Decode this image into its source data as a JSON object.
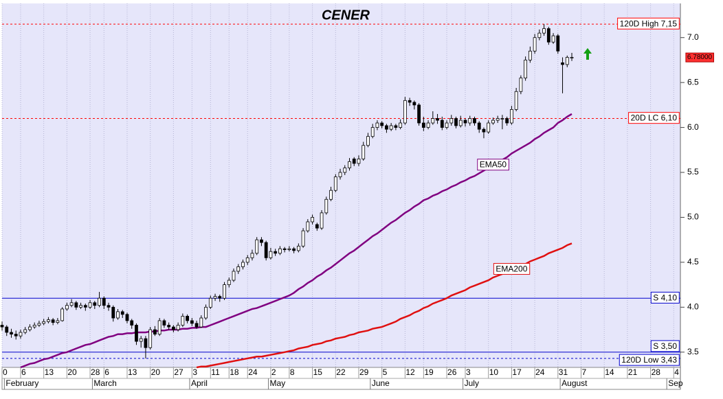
{
  "chart_data": {
    "type": "candlestick",
    "title": "CENER",
    "title_color": "#0a8a0a",
    "ylim": [
      3.33,
      7.38
    ],
    "yticks": [
      3.5,
      {
        "value": 4,
        "label": "4.0"
      },
      4.5,
      {
        "value": 5,
        "label": "5.0"
      },
      5.5,
      {
        "value": 6,
        "label": "6.0"
      },
      6.5,
      {
        "value": 7,
        "label": "7.0"
      }
    ],
    "grid": true,
    "categories": [
      "0",
      null,
      null,
      null,
      "6",
      null,
      null,
      null,
      null,
      "13",
      null,
      null,
      null,
      null,
      "20",
      null,
      null,
      null,
      null,
      "28",
      null,
      null,
      "6",
      null,
      null,
      null,
      null,
      "13",
      null,
      null,
      null,
      null,
      "20",
      null,
      null,
      null,
      null,
      "27",
      null,
      null,
      null,
      "3",
      null,
      null,
      null,
      "11",
      null,
      null,
      null,
      "18",
      null,
      null,
      null,
      "24",
      null,
      null,
      null,
      null,
      "2",
      null,
      null,
      null,
      "8",
      null,
      null,
      null,
      null,
      "15",
      null,
      null,
      null,
      null,
      "22",
      null,
      null,
      null,
      null,
      "29",
      null,
      null,
      null,
      null,
      "5",
      null,
      null,
      null,
      null,
      "12",
      null,
      null,
      null,
      "19",
      null,
      null,
      null,
      null,
      "26",
      null,
      null,
      null,
      "3",
      null,
      null,
      null,
      null,
      "10",
      null,
      null,
      null,
      null,
      "17",
      null,
      null,
      null,
      null,
      "24",
      null,
      null,
      null,
      null,
      "31",
      null,
      null,
      null,
      null,
      "7",
      null,
      null,
      null,
      null,
      "14",
      null,
      null,
      null,
      null,
      "21",
      null,
      null,
      null,
      null,
      "28",
      null,
      null,
      null,
      null,
      "4",
      null
    ],
    "months": [
      null,
      "February",
      null,
      null,
      null,
      null,
      null,
      null,
      null,
      null,
      null,
      null,
      null,
      null,
      null,
      null,
      null,
      null,
      null,
      null,
      "March",
      null,
      null,
      null,
      null,
      null,
      null,
      null,
      null,
      null,
      null,
      null,
      null,
      null,
      null,
      null,
      null,
      null,
      null,
      null,
      null,
      "April",
      null,
      null,
      null,
      null,
      null,
      null,
      null,
      null,
      null,
      null,
      null,
      null,
      null,
      null,
      null,
      null,
      "May",
      null,
      null,
      null,
      null,
      null,
      null,
      null,
      null,
      null,
      null,
      null,
      null,
      null,
      null,
      null,
      null,
      null,
      null,
      null,
      null,
      null,
      "June",
      null,
      null,
      null,
      null,
      null,
      null,
      null,
      null,
      null,
      null,
      null,
      null,
      null,
      null,
      null,
      null,
      null,
      null,
      null,
      "July",
      null,
      null,
      null,
      null,
      null,
      null,
      null,
      null,
      null,
      null,
      null,
      null,
      null,
      null,
      null,
      null,
      null,
      null,
      null,
      null,
      "August",
      null,
      null,
      null,
      null,
      null,
      null,
      null,
      null,
      null,
      null,
      null,
      null,
      null,
      null,
      null,
      null,
      null,
      null,
      null,
      null,
      null,
      null,
      "Sep",
      null,
      null
    ],
    "ohlc": [
      [
        3.8,
        3.84,
        3.74,
        3.78
      ],
      [
        3.78,
        3.8,
        3.68,
        3.72
      ],
      [
        3.72,
        3.76,
        3.66,
        3.7
      ],
      [
        3.7,
        3.74,
        3.64,
        3.68
      ],
      [
        3.68,
        3.75,
        3.65,
        3.72
      ],
      [
        3.72,
        3.78,
        3.7,
        3.75
      ],
      [
        3.75,
        3.81,
        3.73,
        3.78
      ],
      [
        3.78,
        3.83,
        3.76,
        3.8
      ],
      [
        3.8,
        3.85,
        3.78,
        3.82
      ],
      [
        3.82,
        3.87,
        3.8,
        3.84
      ],
      [
        3.84,
        3.89,
        3.82,
        3.86
      ],
      [
        3.86,
        3.88,
        3.8,
        3.83
      ],
      [
        3.83,
        3.88,
        3.81,
        3.85
      ],
      [
        3.85,
        4.0,
        3.84,
        3.98
      ],
      [
        3.98,
        4.05,
        3.96,
        4.02
      ],
      [
        4.02,
        4.09,
        4.0,
        4.05
      ],
      [
        4.05,
        4.07,
        3.97,
        4.0
      ],
      [
        4.0,
        4.05,
        3.98,
        4.02
      ],
      [
        4.02,
        4.04,
        3.96,
        4.0
      ],
      [
        4.0,
        4.08,
        3.98,
        4.05
      ],
      [
        4.05,
        4.07,
        3.98,
        4.02
      ],
      [
        4.02,
        4.17,
        4.0,
        4.1
      ],
      [
        4.1,
        4.12,
        3.98,
        4.02
      ],
      [
        4.02,
        4.05,
        3.96,
        4.0
      ],
      [
        4.0,
        4.02,
        3.84,
        3.88
      ],
      [
        3.88,
        3.98,
        3.86,
        3.95
      ],
      [
        3.95,
        3.97,
        3.88,
        3.92
      ],
      [
        3.92,
        3.94,
        3.82,
        3.85
      ],
      [
        3.85,
        3.87,
        3.76,
        3.8
      ],
      [
        3.8,
        3.82,
        3.58,
        3.62
      ],
      [
        3.62,
        3.68,
        3.55,
        3.65
      ],
      [
        3.65,
        3.68,
        3.43,
        3.55
      ],
      [
        3.55,
        3.78,
        3.53,
        3.75
      ],
      [
        3.75,
        3.79,
        3.68,
        3.7
      ],
      [
        3.7,
        3.88,
        3.68,
        3.85
      ],
      [
        3.85,
        3.87,
        3.77,
        3.8
      ],
      [
        3.8,
        3.83,
        3.75,
        3.78
      ],
      [
        3.78,
        3.8,
        3.72,
        3.75
      ],
      [
        3.75,
        3.83,
        3.73,
        3.8
      ],
      [
        3.8,
        3.93,
        3.78,
        3.9
      ],
      [
        3.9,
        3.92,
        3.82,
        3.85
      ],
      [
        3.85,
        3.88,
        3.79,
        3.82
      ],
      [
        3.82,
        3.85,
        3.76,
        3.78
      ],
      [
        3.78,
        3.91,
        3.77,
        3.88
      ],
      [
        3.88,
        4.03,
        3.86,
        4.0
      ],
      [
        4.0,
        4.13,
        3.98,
        4.1
      ],
      [
        4.1,
        4.15,
        4.07,
        4.12
      ],
      [
        4.12,
        4.14,
        4.06,
        4.1
      ],
      [
        4.1,
        4.28,
        4.08,
        4.25
      ],
      [
        4.25,
        4.33,
        4.22,
        4.3
      ],
      [
        4.3,
        4.43,
        4.28,
        4.4
      ],
      [
        4.4,
        4.48,
        4.37,
        4.45
      ],
      [
        4.45,
        4.53,
        4.42,
        4.5
      ],
      [
        4.5,
        4.58,
        4.47,
        4.55
      ],
      [
        4.55,
        4.64,
        4.52,
        4.6
      ],
      [
        4.6,
        4.78,
        4.58,
        4.75
      ],
      [
        4.75,
        4.78,
        4.68,
        4.72
      ],
      [
        4.72,
        4.74,
        4.52,
        4.55
      ],
      [
        4.55,
        4.66,
        4.53,
        4.62
      ],
      [
        4.62,
        4.65,
        4.57,
        4.6
      ],
      [
        4.6,
        4.68,
        4.58,
        4.65
      ],
      [
        4.65,
        4.67,
        4.61,
        4.64
      ],
      [
        4.64,
        4.68,
        4.62,
        4.65
      ],
      [
        4.65,
        4.67,
        4.6,
        4.63
      ],
      [
        4.63,
        4.71,
        4.61,
        4.68
      ],
      [
        4.68,
        4.88,
        4.66,
        4.85
      ],
      [
        4.85,
        4.98,
        4.83,
        4.95
      ],
      [
        4.95,
        5.03,
        4.92,
        5.0
      ],
      [
        4.92,
        4.94,
        4.85,
        4.88
      ],
      [
        4.88,
        5.08,
        4.86,
        5.05
      ],
      [
        5.05,
        5.23,
        5.03,
        5.2
      ],
      [
        5.2,
        5.34,
        5.18,
        5.3
      ],
      [
        5.3,
        5.48,
        5.28,
        5.45
      ],
      [
        5.45,
        5.54,
        5.42,
        5.5
      ],
      [
        5.5,
        5.58,
        5.47,
        5.55
      ],
      [
        5.55,
        5.66,
        5.52,
        5.62
      ],
      [
        5.65,
        5.67,
        5.57,
        5.6
      ],
      [
        5.6,
        5.69,
        5.57,
        5.65
      ],
      [
        5.65,
        5.84,
        5.63,
        5.8
      ],
      [
        5.8,
        5.94,
        5.78,
        5.9
      ],
      [
        5.9,
        6.04,
        5.88,
        6.0
      ],
      [
        6.0,
        6.08,
        5.97,
        6.05
      ],
      [
        6.05,
        6.07,
        5.99,
        6.02
      ],
      [
        6.02,
        6.04,
        5.94,
        5.98
      ],
      [
        5.98,
        6.05,
        5.96,
        6.02
      ],
      [
        6.02,
        6.04,
        5.97,
        6.0
      ],
      [
        6.0,
        6.09,
        5.98,
        6.05
      ],
      [
        6.05,
        6.34,
        6.03,
        6.3
      ],
      [
        6.3,
        6.33,
        6.24,
        6.28
      ],
      [
        6.28,
        6.3,
        6.2,
        6.25
      ],
      [
        6.25,
        6.27,
        6.02,
        6.05
      ],
      [
        6.05,
        6.12,
        5.96,
        6.0
      ],
      [
        6.0,
        6.08,
        5.98,
        6.05
      ],
      [
        6.05,
        6.18,
        6.03,
        6.1
      ],
      [
        6.1,
        6.15,
        6.04,
        6.08
      ],
      [
        6.08,
        6.12,
        5.97,
        6.0
      ],
      [
        6.0,
        6.08,
        5.98,
        6.05
      ],
      [
        6.05,
        6.14,
        6.02,
        6.1
      ],
      [
        6.1,
        6.12,
        5.99,
        6.02
      ],
      [
        6.02,
        6.13,
        6.0,
        6.08
      ],
      [
        6.08,
        6.1,
        6.01,
        6.05
      ],
      [
        6.05,
        6.13,
        6.02,
        6.1
      ],
      [
        6.1,
        6.12,
        6.02,
        6.05
      ],
      [
        6.05,
        6.07,
        5.94,
        5.98
      ],
      [
        5.98,
        6.0,
        5.88,
        5.95
      ],
      [
        5.95,
        6.08,
        5.93,
        6.05
      ],
      [
        6.05,
        6.11,
        6.03,
        6.08
      ],
      [
        6.08,
        6.13,
        6.05,
        6.1
      ],
      [
        6.1,
        6.14,
        5.98,
        6.1
      ],
      [
        6.1,
        6.12,
        6.02,
        6.05
      ],
      [
        6.05,
        6.24,
        6.03,
        6.2
      ],
      [
        6.2,
        6.44,
        6.18,
        6.4
      ],
      [
        6.4,
        6.58,
        6.37,
        6.55
      ],
      [
        6.55,
        6.79,
        6.52,
        6.75
      ],
      [
        6.75,
        6.9,
        6.72,
        6.85
      ],
      [
        6.85,
        7.04,
        6.82,
        7.0
      ],
      [
        7.0,
        7.09,
        6.97,
        7.05
      ],
      [
        7.05,
        7.15,
        7.02,
        7.1
      ],
      [
        7.1,
        7.12,
        6.92,
        6.95
      ],
      [
        6.95,
        7.05,
        6.93,
        7.02
      ],
      [
        7.02,
        7.04,
        6.82,
        6.85
      ],
      [
        6.72,
        6.78,
        6.38,
        6.7
      ],
      [
        6.7,
        6.8,
        6.67,
        6.78
      ],
      [
        6.78,
        6.83,
        6.74,
        6.78
      ],
      null,
      null,
      null,
      null,
      null,
      null,
      null,
      null,
      null,
      null,
      null,
      null,
      null,
      null,
      null,
      null,
      null,
      null,
      null,
      null,
      null,
      null,
      null
    ],
    "series": [
      {
        "name": "EMA50",
        "color": "#800080",
        "values": [
          null,
          null,
          null,
          null,
          3.33,
          3.35,
          3.37,
          3.38,
          3.4,
          3.42,
          3.43,
          3.45,
          3.47,
          3.49,
          3.5,
          3.52,
          3.54,
          3.56,
          3.58,
          3.59,
          3.61,
          3.63,
          3.65,
          3.67,
          3.68,
          3.7,
          3.7,
          3.71,
          3.71,
          3.72,
          3.72,
          3.72,
          3.73,
          3.73,
          3.74,
          3.74,
          3.75,
          3.75,
          3.75,
          3.76,
          3.76,
          3.77,
          3.77,
          3.78,
          3.78,
          3.8,
          3.82,
          3.84,
          3.86,
          3.88,
          3.9,
          3.92,
          3.94,
          3.96,
          3.98,
          3.99,
          4.01,
          4.03,
          4.05,
          4.07,
          4.09,
          4.11,
          4.13,
          4.16,
          4.2,
          4.23,
          4.27,
          4.3,
          4.34,
          4.37,
          4.41,
          4.44,
          4.48,
          4.52,
          4.56,
          4.6,
          4.63,
          4.67,
          4.71,
          4.75,
          4.79,
          4.82,
          4.86,
          4.9,
          4.94,
          4.97,
          5.01,
          5.05,
          5.08,
          5.12,
          5.15,
          5.19,
          5.21,
          5.24,
          5.26,
          5.29,
          5.31,
          5.34,
          5.36,
          5.39,
          5.41,
          5.44,
          5.46,
          5.49,
          5.52,
          5.55,
          5.58,
          5.61,
          5.64,
          5.67,
          5.71,
          5.74,
          5.77,
          5.8,
          5.83,
          5.87,
          5.9,
          5.94,
          5.97,
          6.0,
          6.05,
          6.08,
          6.12,
          6.15,
          null,
          null,
          null,
          null,
          null,
          null,
          null,
          null,
          null,
          null,
          null,
          null,
          null,
          null,
          null,
          null,
          null,
          null,
          null,
          null,
          null,
          null,
          null
        ]
      },
      {
        "name": "EMA200",
        "color": "#e01010",
        "values": [
          null,
          null,
          null,
          null,
          null,
          null,
          null,
          null,
          null,
          null,
          null,
          null,
          null,
          null,
          null,
          null,
          null,
          null,
          null,
          null,
          null,
          null,
          null,
          null,
          null,
          null,
          null,
          null,
          null,
          null,
          null,
          null,
          null,
          null,
          null,
          null,
          null,
          null,
          null,
          null,
          null,
          null,
          3.33,
          3.34,
          3.34,
          3.35,
          3.36,
          3.37,
          3.38,
          3.39,
          3.4,
          3.41,
          3.42,
          3.43,
          3.44,
          3.45,
          3.45,
          3.46,
          3.47,
          3.48,
          3.49,
          3.5,
          3.51,
          3.52,
          3.54,
          3.55,
          3.56,
          3.58,
          3.59,
          3.6,
          3.62,
          3.63,
          3.65,
          3.66,
          3.67,
          3.69,
          3.7,
          3.72,
          3.73,
          3.74,
          3.76,
          3.77,
          3.78,
          3.8,
          3.82,
          3.84,
          3.87,
          3.89,
          3.91,
          3.94,
          3.96,
          3.99,
          4.01,
          4.04,
          4.06,
          4.08,
          4.1,
          4.13,
          4.15,
          4.17,
          4.19,
          4.22,
          4.24,
          4.26,
          4.28,
          4.3,
          4.33,
          4.35,
          4.37,
          4.39,
          4.42,
          4.44,
          4.46,
          4.48,
          4.51,
          4.53,
          4.55,
          4.57,
          4.6,
          4.62,
          4.64,
          4.66,
          4.69,
          4.71,
          null,
          null,
          null,
          null,
          null,
          null,
          null,
          null,
          null,
          null,
          null,
          null,
          null,
          null,
          null,
          null,
          null,
          null,
          null,
          null,
          null,
          null,
          null
        ]
      }
    ],
    "levels": [
      {
        "label": "120D High 7,15",
        "value": 7.15,
        "color": "#ff0000",
        "dashed": true
      },
      {
        "label": "20D LC 6,10",
        "value": 6.1,
        "color": "#ff0000",
        "dashed": true
      },
      {
        "label": "S 4,10",
        "value": 4.1,
        "color": "#0000cc",
        "dashed": false
      },
      {
        "label": "S 3,50",
        "value": 3.5,
        "color": "#0000cc",
        "dashed": false
      },
      {
        "label": "120D Low 3,43",
        "value": 3.43,
        "color": "#0000cc",
        "dashed": true
      }
    ],
    "last_price": {
      "value": 6.78,
      "label": "6.78000"
    }
  }
}
